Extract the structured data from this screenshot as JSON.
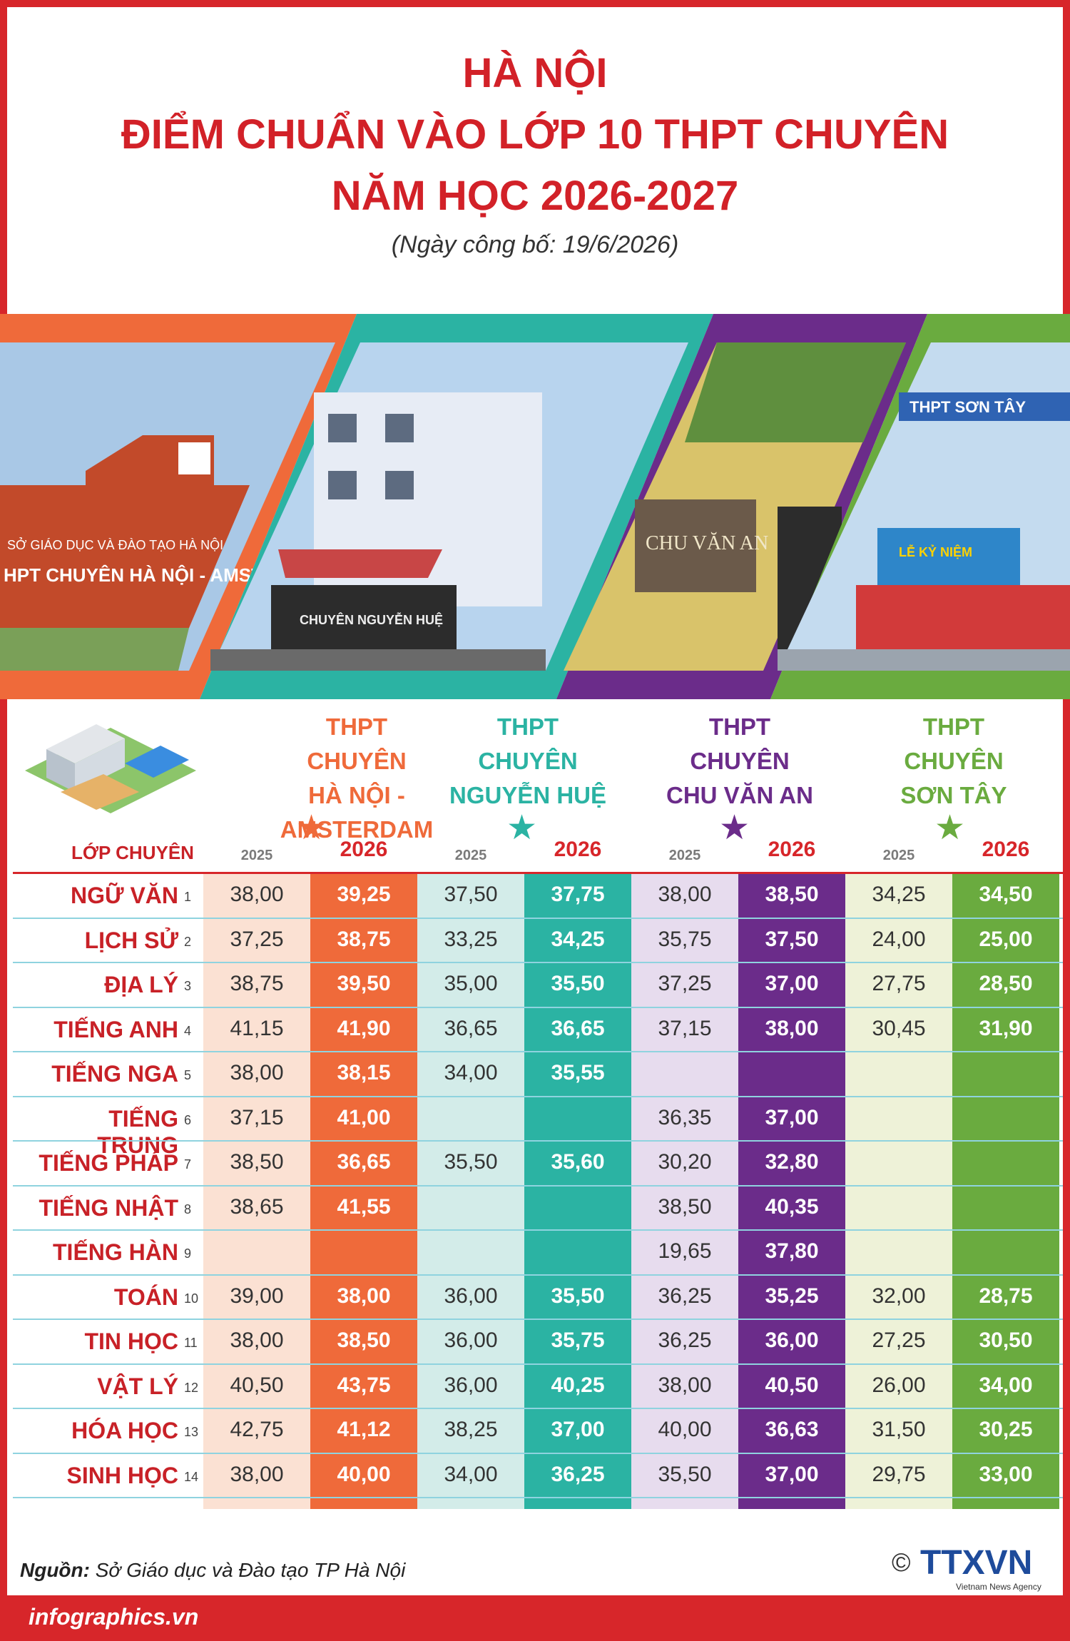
{
  "header": {
    "line1": "HÀ NỘI",
    "line2": "ĐIỂM CHUẨN VÀO LỚP 10 THPT CHUYÊN",
    "line3": "NĂM HỌC 2026-2027",
    "date": "(Ngày công bố: 19/6/2026)"
  },
  "photos": {
    "ams_sign": "HPT CHUYÊN HÀ NỘI - AMSTERDAM",
    "ams_dept": "SỞ GIÁO DỤC VÀ ĐÀO TẠO HÀ NỘI",
    "nh_sign": "CHUYÊN NGUYỄN HUỆ",
    "cva_sign": "CHU VĂN AN",
    "st_sign": "THPT SƠN TÂY",
    "st_banner": "LỄ KỶ NIỆM"
  },
  "colors": {
    "red": "#d7262a",
    "orange": "#ef6a3a",
    "teal": "#2bb3a3",
    "purple": "#6b2c8a",
    "green": "#6aab3f"
  },
  "schools": [
    {
      "line1": "THPT",
      "line2": "CHUYÊN",
      "line3": "HÀ NỘI - AMSTERDAM",
      "color": "#ef6a3a"
    },
    {
      "line1": "THPT",
      "line2": "CHUYÊN",
      "line3": "NGUYỄN HUỆ",
      "color": "#2bb3a3"
    },
    {
      "line1": "THPT",
      "line2": "CHUYÊN",
      "line3": "CHU VĂN AN",
      "color": "#6b2c8a"
    },
    {
      "line1": "THPT",
      "line2": "CHUYÊN",
      "line3": "SƠN TÂY",
      "color": "#6aab3f"
    }
  ],
  "table": {
    "subject_header": "LỚP CHUYÊN",
    "year_old": "2025",
    "year_new": "2026",
    "rows": [
      {
        "subject": "NGỮ VĂN",
        "no": "1",
        "scores": [
          "38,00",
          "39,25",
          "37,50",
          "37,75",
          "38,00",
          "38,50",
          "34,25",
          "34,50"
        ]
      },
      {
        "subject": "LỊCH SỬ",
        "no": "2",
        "scores": [
          "37,25",
          "38,75",
          "33,25",
          "34,25",
          "35,75",
          "37,50",
          "24,00",
          "25,00"
        ]
      },
      {
        "subject": "ĐỊA LÝ",
        "no": "3",
        "scores": [
          "38,75",
          "39,50",
          "35,00",
          "35,50",
          "37,25",
          "37,00",
          "27,75",
          "28,50"
        ]
      },
      {
        "subject": "TIẾNG ANH",
        "no": "4",
        "scores": [
          "41,15",
          "41,90",
          "36,65",
          "36,65",
          "37,15",
          "38,00",
          "30,45",
          "31,90"
        ]
      },
      {
        "subject": "TIẾNG NGA",
        "no": "5",
        "scores": [
          "38,00",
          "38,15",
          "34,00",
          "35,55",
          "",
          "",
          "",
          ""
        ]
      },
      {
        "subject": "TIẾNG TRUNG",
        "no": "6",
        "scores": [
          "37,15",
          "41,00",
          "",
          "",
          "36,35",
          "37,00",
          "",
          ""
        ]
      },
      {
        "subject": "TIẾNG PHÁP",
        "no": "7",
        "scores": [
          "38,50",
          "36,65",
          "35,50",
          "35,60",
          "30,20",
          "32,80",
          "",
          ""
        ]
      },
      {
        "subject": "TIẾNG NHẬT",
        "no": "8",
        "scores": [
          "38,65",
          "41,55",
          "",
          "",
          "38,50",
          "40,35",
          "",
          ""
        ]
      },
      {
        "subject": "TIẾNG HÀN",
        "no": "9",
        "scores": [
          "",
          "",
          "",
          "",
          "19,65",
          "37,80",
          "",
          ""
        ]
      },
      {
        "subject": "TOÁN",
        "no": "10",
        "scores": [
          "39,00",
          "38,00",
          "36,00",
          "35,50",
          "36,25",
          "35,25",
          "32,00",
          "28,75"
        ]
      },
      {
        "subject": "TIN HỌC",
        "no": "11",
        "scores": [
          "38,00",
          "38,50",
          "36,00",
          "35,75",
          "36,25",
          "36,00",
          "27,25",
          "30,50"
        ]
      },
      {
        "subject": "VẬT LÝ",
        "no": "12",
        "scores": [
          "40,50",
          "43,75",
          "36,00",
          "40,25",
          "38,00",
          "40,50",
          "26,00",
          "34,00"
        ]
      },
      {
        "subject": "HÓA HỌC",
        "no": "13",
        "scores": [
          "42,75",
          "41,12",
          "38,25",
          "37,00",
          "40,00",
          "36,63",
          "31,50",
          "30,25"
        ]
      },
      {
        "subject": "SINH HỌC",
        "no": "14",
        "scores": [
          "38,00",
          "40,00",
          "34,00",
          "36,25",
          "35,50",
          "37,00",
          "29,75",
          "33,00"
        ]
      }
    ]
  },
  "footer": {
    "source_label": "Nguồn:",
    "source_text": "Sở Giáo dục và Đào tạo TP Hà Nội",
    "site": "infographics.vn",
    "logo_text": "TTXVN",
    "logo_sub": "Vietnam News Agency",
    "copyright": "©"
  }
}
